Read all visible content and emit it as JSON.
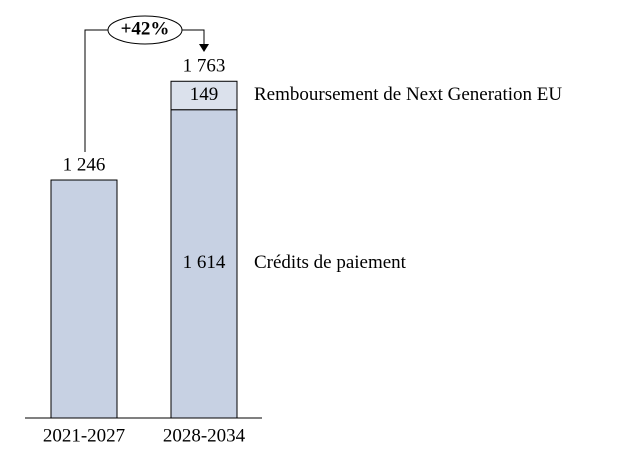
{
  "chart_data": {
    "type": "stacked-bar",
    "annotation": "+42%",
    "categories": [
      "2021-2027",
      "2028-2034"
    ],
    "totals": [
      1246,
      1763
    ],
    "total_labels": [
      "1 246",
      "1 763"
    ],
    "series": [
      {
        "name": "Crédits de paiement",
        "color": "#c7d1e3",
        "values": [
          1246,
          1614
        ],
        "value_labels": [
          null,
          "1 614"
        ]
      },
      {
        "name": "Remboursement de Next Generation EU",
        "color": "#dbe1ec",
        "values": [
          null,
          149
        ]
      }
    ]
  }
}
